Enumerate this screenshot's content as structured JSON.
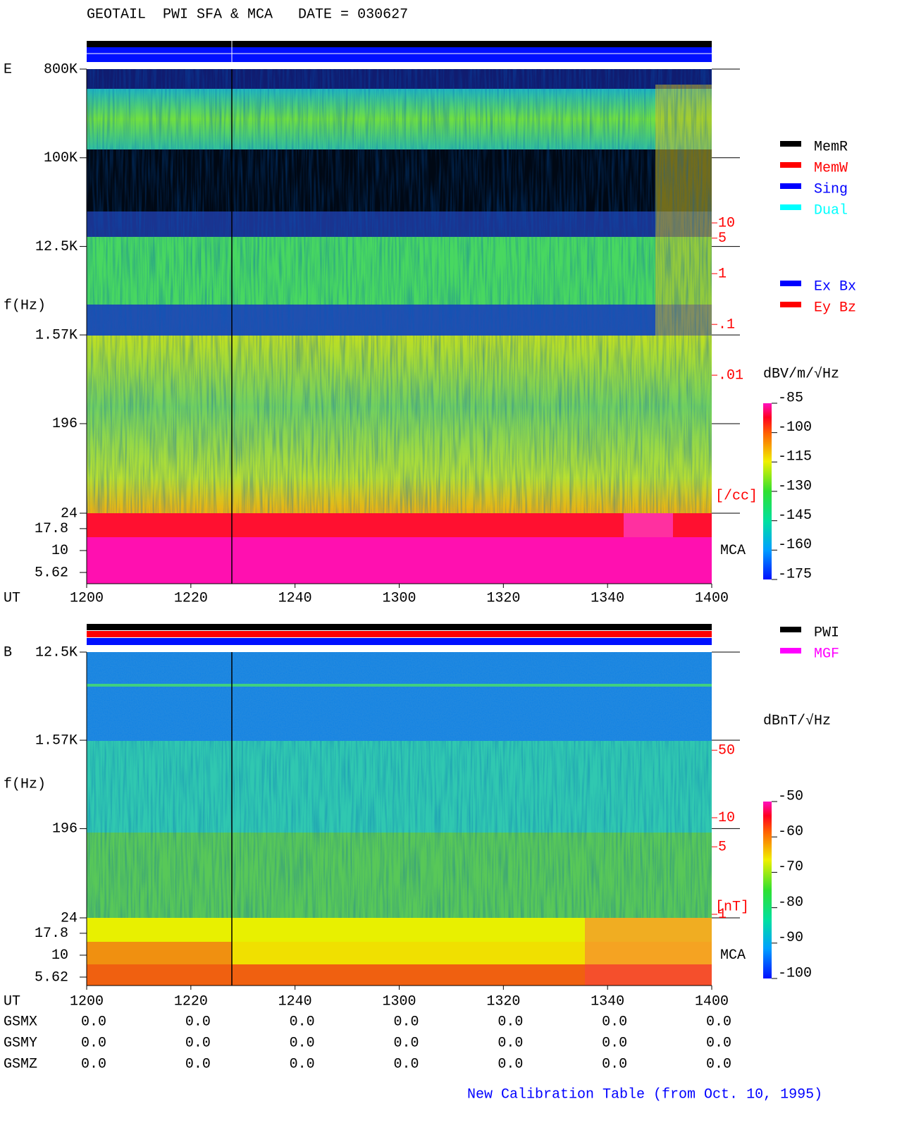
{
  "chart_data": {
    "type": "spectrogram",
    "title": "GEOTAIL  PWI SFA & MCA   DATE = 030627",
    "x_axis": {
      "label": "UT",
      "ticks": [
        "1200",
        "1220",
        "1240",
        "1300",
        "1320",
        "1340",
        "1400"
      ]
    },
    "legend_mode": [
      {
        "name": "MemR",
        "color": "#000000"
      },
      {
        "name": "MemW",
        "color": "#ff0000"
      },
      {
        "name": "Sing",
        "color": "#0000ff"
      },
      {
        "name": "Dual",
        "color": "#00ffff"
      }
    ],
    "legend_axis": [
      {
        "name": "Ex Bx",
        "color": "#0000ff"
      },
      {
        "name": "Ey Bz",
        "color": "#ff0000"
      }
    ],
    "legend_source": [
      {
        "name": "PWI",
        "color": "#000000"
      },
      {
        "name": "MGF",
        "color": "#ff00ff"
      }
    ],
    "panels": [
      {
        "name": "E",
        "ylabel": "f(Hz)",
        "yscale": "log",
        "ylim": [
          24,
          800000
        ],
        "yticks": [
          {
            "value": 800000,
            "label": "800K"
          },
          {
            "value": 100000,
            "label": "100K"
          },
          {
            "value": 12500,
            "label": "12.5K"
          },
          {
            "value": 1570,
            "label": "1.57K"
          },
          196,
          24
        ],
        "mca_label": "MCA",
        "mca_ylim": [
          4.18,
          26.7
        ],
        "mca_ticks": [
          17.8,
          10,
          5.62
        ],
        "y2label": "[/cc]",
        "y2lim": [
          7.8e-07,
          10700
        ],
        "y2ticks": [
          10,
          5,
          1,
          {
            "value": 0.1,
            "label": ".1"
          },
          {
            "value": 0.01,
            "label": ".01"
          }
        ],
        "colorbar": {
          "label": "dBV/m/√Hz",
          "lim": [
            -175,
            -85
          ],
          "ticks": [
            -85,
            -100,
            -115,
            -130,
            -145,
            -160,
            -175
          ]
        }
      },
      {
        "name": "B",
        "ylabel": "f(Hz)",
        "yscale": "log",
        "ylim": [
          24,
          12500
        ],
        "yticks": [
          {
            "value": 12500,
            "label": "12.5K"
          },
          {
            "value": 1570,
            "label": "1.57K"
          },
          196,
          24
        ],
        "mca_label": "MCA",
        "mca_ylim": [
          4.5,
          26.7
        ],
        "mca_ticks": [
          17.8,
          10,
          5.62
        ],
        "y2label": "[nT]",
        "y2lim": [
          0.183,
          519
        ],
        "y2ticks": [
          50,
          10,
          5,
          1
        ],
        "colorbar": {
          "label": "dBnT/√Hz",
          "lim": [
            -100,
            -50
          ],
          "ticks": [
            -50,
            -60,
            -70,
            -80,
            -90,
            -100
          ]
        }
      }
    ],
    "orbit": [
      {
        "name": "GSMX",
        "values": [
          "0.0",
          "0.0",
          "0.0",
          "0.0",
          "0.0",
          "0.0",
          "0.0"
        ]
      },
      {
        "name": "GSMY",
        "values": [
          "0.0",
          "0.0",
          "0.0",
          "0.0",
          "0.0",
          "0.0",
          "0.0"
        ]
      },
      {
        "name": "GSMZ",
        "values": [
          "0.0",
          "0.0",
          "0.0",
          "0.0",
          "0.0",
          "0.0",
          "0.0"
        ]
      }
    ],
    "footer": "New Calibration Table (from Oct. 10, 1995)"
  }
}
